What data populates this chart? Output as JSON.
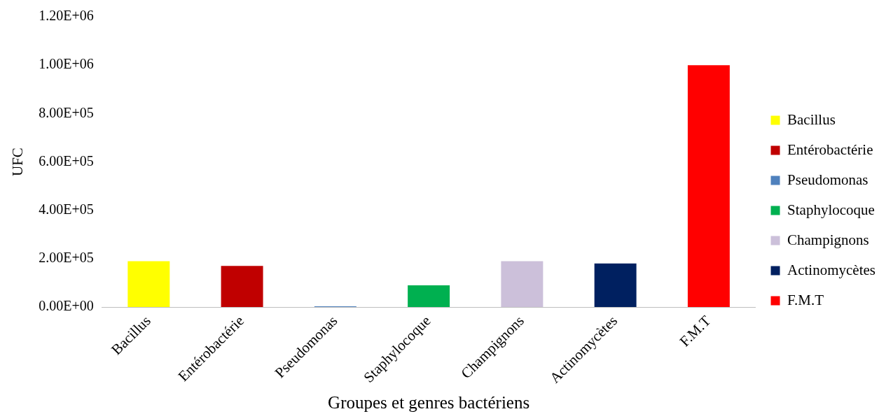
{
  "chart_data": {
    "type": "bar",
    "xlabel": "Groupes et genres bactériens",
    "ylabel": "UFC",
    "categories": [
      "Bacillus",
      "Entérobactérie",
      "Pseudomonas",
      "Staphylocoque",
      "Champignons",
      "Actinomycètes",
      "F.M.T"
    ],
    "series": [
      {
        "name": "Bacillus",
        "color": "#ffff00",
        "values": [
          190000,
          null,
          null,
          null,
          null,
          null,
          null
        ]
      },
      {
        "name": "Entérobactérie",
        "color": "#c00000",
        "values": [
          null,
          170000,
          null,
          null,
          null,
          null,
          null
        ]
      },
      {
        "name": "Pseudomonas",
        "color": "#4f81bd",
        "values": [
          null,
          null,
          3000,
          null,
          null,
          null,
          null
        ]
      },
      {
        "name": "Staphylocoque",
        "color": "#00b050",
        "values": [
          null,
          null,
          null,
          90000,
          null,
          null,
          null
        ]
      },
      {
        "name": "Champignons",
        "color": "#ccc0da",
        "values": [
          null,
          null,
          null,
          null,
          190000,
          null,
          null
        ]
      },
      {
        "name": "Actinomycètes",
        "color": "#002060",
        "values": [
          null,
          null,
          null,
          null,
          null,
          180000,
          null
        ]
      },
      {
        "name": "F.M.T",
        "color": "#ff0000",
        "values": [
          null,
          null,
          null,
          null,
          null,
          null,
          1000000
        ]
      }
    ],
    "ylim": [
      0,
      1200000
    ],
    "yticks": [
      {
        "value": 0,
        "label": "0.00E+00"
      },
      {
        "value": 200000,
        "label": "2.00E+05"
      },
      {
        "value": 400000,
        "label": "4.00E+05"
      },
      {
        "value": 600000,
        "label": "6.00E+05"
      },
      {
        "value": 800000,
        "label": "8.00E+05"
      },
      {
        "value": 1000000,
        "label": "1.00E+06"
      },
      {
        "value": 1200000,
        "label": "1.20E+06"
      }
    ],
    "grid": false,
    "legend": "right"
  }
}
